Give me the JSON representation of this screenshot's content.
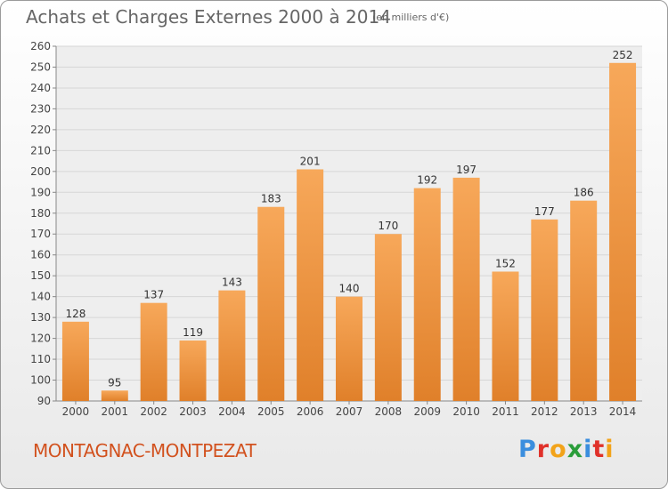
{
  "header": {
    "title": "Achats et Charges Externes 2000 à 2014",
    "unit": "(en milliers d'€)"
  },
  "footer": {
    "place": "MONTAGNAC-MONTPEZAT",
    "logo_letters": [
      "P",
      "r",
      "o",
      "x",
      "i",
      "t",
      "i"
    ],
    "logo_colors": [
      "#3b8ede",
      "#e0312a",
      "#f2a31a",
      "#2a9d3a",
      "#3b8ede",
      "#e0312a",
      "#f2a31a"
    ]
  },
  "chart_data": {
    "type": "bar",
    "categories": [
      "2000",
      "2001",
      "2002",
      "2003",
      "2004",
      "2005",
      "2006",
      "2007",
      "2008",
      "2009",
      "2010",
      "2011",
      "2012",
      "2013",
      "2014"
    ],
    "values": [
      128,
      95,
      137,
      119,
      143,
      183,
      201,
      140,
      170,
      192,
      197,
      152,
      177,
      186,
      252
    ],
    "ylim": [
      90,
      260
    ],
    "yticks": [
      90,
      100,
      110,
      120,
      130,
      140,
      150,
      160,
      170,
      180,
      190,
      200,
      210,
      220,
      230,
      240,
      250,
      260
    ],
    "grid": true,
    "bar_color_light": "#f7a85a",
    "bar_color_dark": "#e0802a"
  }
}
